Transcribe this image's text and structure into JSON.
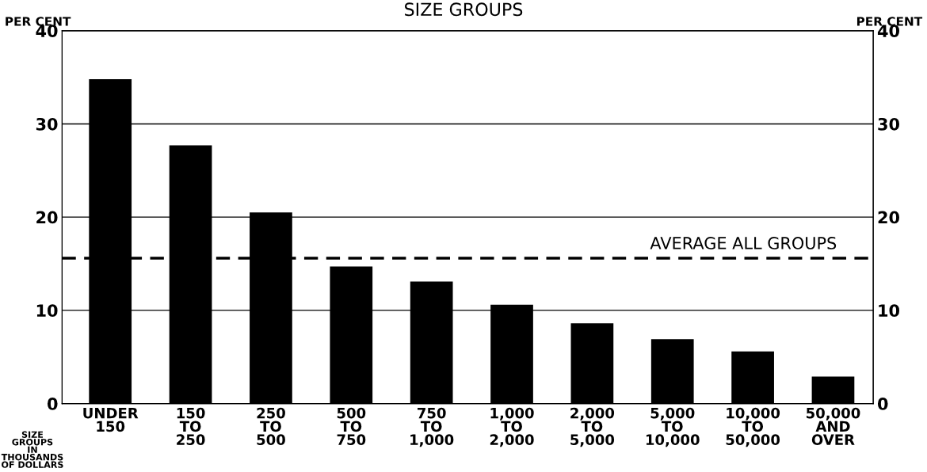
{
  "chart_data": {
    "type": "bar",
    "title": "SIZE GROUPS",
    "categories": [
      "UNDER\n150",
      "150\nTO\n250",
      "250\nTO\n500",
      "500\nTO\n750",
      "750\nTO\n1,000",
      "1,000\nTO\n2,000",
      "2,000\nTO\n5,000",
      "5,000\nTO\n10,000",
      "10,000\nTO\n50,000",
      "50,000\nAND\nOVER"
    ],
    "values": [
      34.8,
      27.7,
      20.5,
      14.7,
      13.1,
      10.6,
      8.6,
      6.9,
      5.6,
      2.9
    ],
    "color": "#000000",
    "xlabel": "SIZE\nGROUPS\nIN\nTHOUSANDS\nOF DOLLARS",
    "ylabel": "PER CENT",
    "y2label": "PER CENT",
    "ylim": [
      0,
      40
    ],
    "yticks": [
      0,
      10,
      20,
      30,
      40
    ],
    "y2lim": [
      0,
      40
    ],
    "y2ticks": [
      0,
      10,
      20,
      30,
      40
    ],
    "grid": "y",
    "ref_lines": [
      {
        "axis": "y",
        "value": 15.6,
        "label": "AVERAGE ALL GROUPS",
        "color": "#000000",
        "line_style": "dashed"
      }
    ]
  }
}
